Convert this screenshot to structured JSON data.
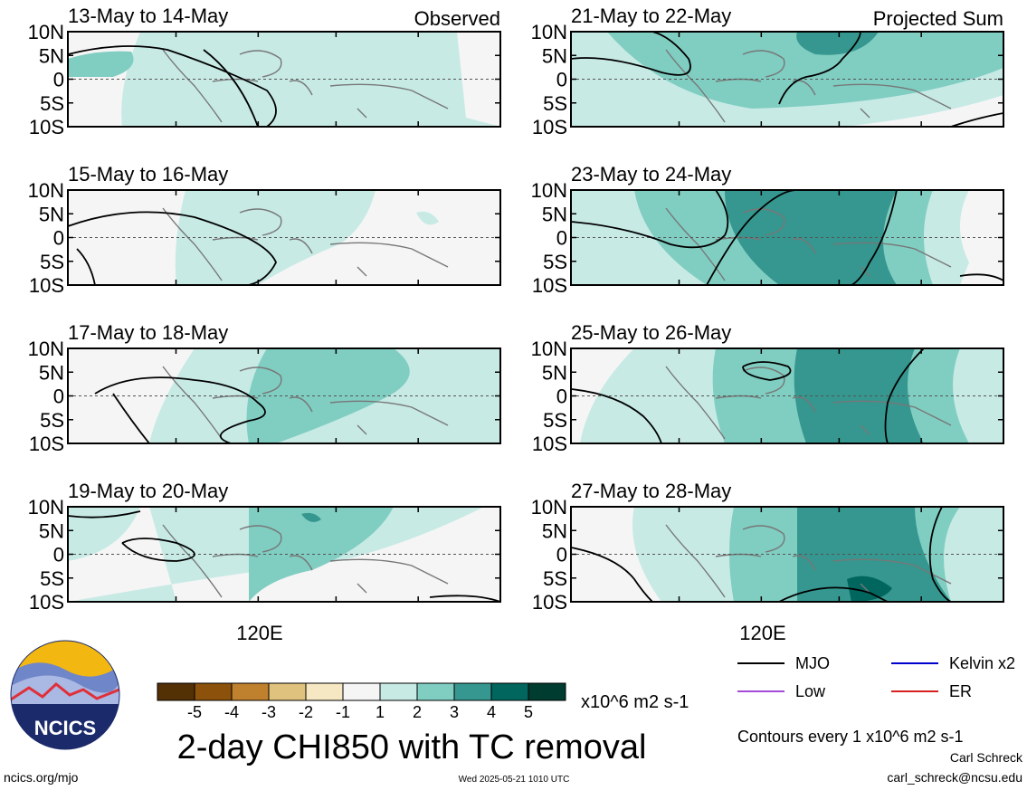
{
  "chart_data": {
    "type": "heatmap",
    "title": "2-day CHI850 with TC removal",
    "columns": [
      {
        "label": "Observed",
        "panels": [
          "13-May to 14-May",
          "15-May to 16-May",
          "17-May to 18-May",
          "19-May to 20-May"
        ]
      },
      {
        "label": "Projected Sum",
        "panels": [
          "21-May to 22-May",
          "23-May to 24-May",
          "25-May to 26-May",
          "27-May to 28-May"
        ]
      }
    ],
    "y_ticks": [
      "10N",
      "5N",
      "0",
      "5S",
      "10S"
    ],
    "x_tick": "120E",
    "colorbar": {
      "ticks": [
        "-5",
        "-4",
        "-3",
        "-2",
        "-1",
        "1",
        "2",
        "3",
        "4",
        "5"
      ],
      "unit": "x10^6 m2 s-1",
      "colors": [
        "#543005",
        "#8c510a",
        "#bf812d",
        "#dfc27d",
        "#f6e8c3",
        "#f5f5f5",
        "#c7eae5",
        "#80cdc1",
        "#35978f",
        "#01665e",
        "#003c30"
      ]
    },
    "legend": [
      {
        "label": "MJO",
        "color": "#000000"
      },
      {
        "label": "Kelvin x2",
        "color": "#0000cc"
      },
      {
        "label": "Low",
        "color": "#a64bd9"
      },
      {
        "label": "ER",
        "color": "#d62020"
      }
    ],
    "contour_note": "Contours every 1 x10^6 m2 s-1",
    "grid": false
  },
  "footer": {
    "logo_text": "NCICS",
    "url": "ncics.org/mjo",
    "timestamp": "Wed 2025-05-21 1010 UTC",
    "author": "Carl Schreck",
    "email": "carl_schreck@ncsu.edu"
  }
}
